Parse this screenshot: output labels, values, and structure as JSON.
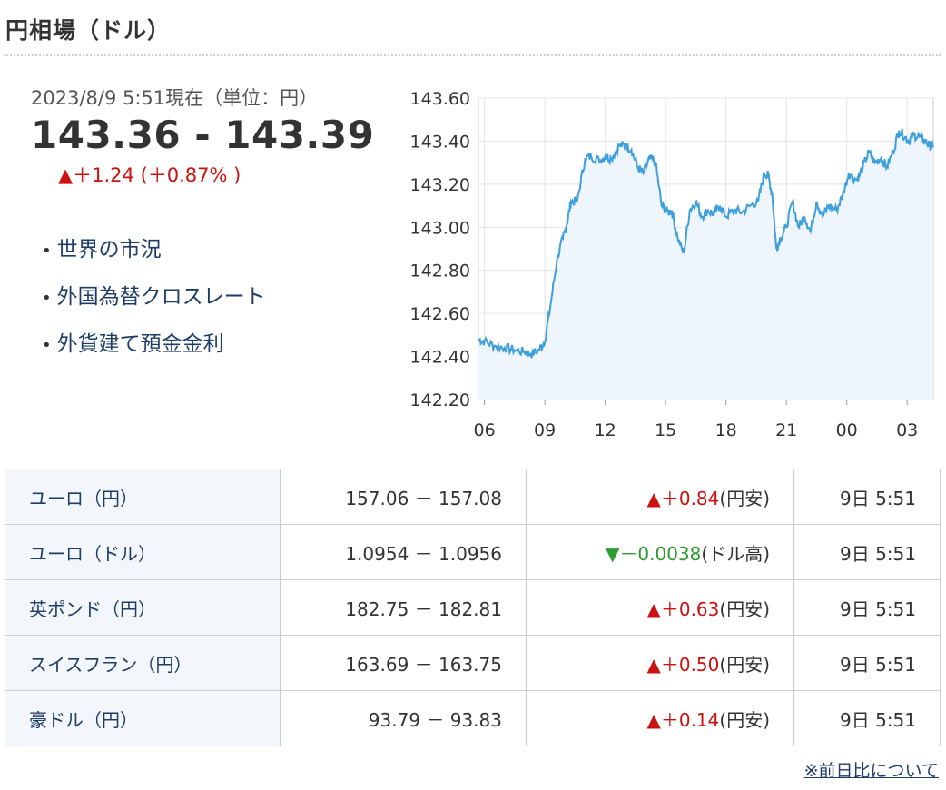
{
  "header": {
    "title": "円相場（ドル）"
  },
  "quote": {
    "as_of": "2023/8/9 5:51現在（単位：円）",
    "price": "143.36 - 143.39",
    "change": "▲＋1.24 (＋0.87% )"
  },
  "links": [
    {
      "label": "世界の市況"
    },
    {
      "label": "外国為替クロスレート"
    },
    {
      "label": "外貨建て預金金利"
    }
  ],
  "chart_data": {
    "type": "line",
    "title": "",
    "xlabel": "",
    "ylabel": "",
    "x_ticks": [
      "06",
      "09",
      "12",
      "15",
      "18",
      "21",
      "00",
      "03"
    ],
    "y_ticks": [
      "143.60",
      "143.40",
      "143.20",
      "143.00",
      "142.80",
      "142.60",
      "142.40",
      "142.20"
    ],
    "ylim": [
      142.2,
      143.6
    ],
    "xlim": [
      5.7,
      28.3
    ],
    "grid": true,
    "series": [
      {
        "color": "#3d9fdc",
        "fill": "#eef5fc",
        "x": [
          5.7,
          6.0,
          6.5,
          7.0,
          7.5,
          8.0,
          8.3,
          8.7,
          9.0,
          9.3,
          9.6,
          9.9,
          10.1,
          10.3,
          10.6,
          11.0,
          11.3,
          11.7,
          12.0,
          12.3,
          12.7,
          13.0,
          13.3,
          13.6,
          13.9,
          14.2,
          14.5,
          14.8,
          15.1,
          15.3,
          15.6,
          15.9,
          16.2,
          16.5,
          16.8,
          17.1,
          17.4,
          17.7,
          18.0,
          18.4,
          18.8,
          19.2,
          19.6,
          19.9,
          20.1,
          20.3,
          20.5,
          20.7,
          21.0,
          21.3,
          21.6,
          21.9,
          22.2,
          22.5,
          22.8,
          23.1,
          23.5,
          23.8,
          24.1,
          24.5,
          24.8,
          25.1,
          25.4,
          25.7,
          26.0,
          26.3,
          26.6,
          26.9,
          27.1,
          27.3,
          27.6,
          27.9,
          28.1,
          28.3
        ],
        "values": [
          142.48,
          142.47,
          142.45,
          142.44,
          142.43,
          142.42,
          142.41,
          142.43,
          142.47,
          142.65,
          142.85,
          142.95,
          143.02,
          143.12,
          143.12,
          143.32,
          143.33,
          143.31,
          143.33,
          143.32,
          143.38,
          143.38,
          143.36,
          143.28,
          143.25,
          143.32,
          143.3,
          143.1,
          143.07,
          143.08,
          142.95,
          142.88,
          143.08,
          143.12,
          143.05,
          143.08,
          143.06,
          143.1,
          143.05,
          143.08,
          143.07,
          143.1,
          143.12,
          143.25,
          143.24,
          143.15,
          142.9,
          142.95,
          143.0,
          143.12,
          143.0,
          143.05,
          142.98,
          143.12,
          143.05,
          143.1,
          143.08,
          143.15,
          143.25,
          143.22,
          143.28,
          143.35,
          143.3,
          143.32,
          143.28,
          143.35,
          143.45,
          143.42,
          143.4,
          143.43,
          143.42,
          143.4,
          143.38,
          143.37
        ]
      }
    ]
  },
  "table": {
    "rows": [
      {
        "name": "ユーロ（円）",
        "rate": "157.06 － 157.08",
        "dir": "up",
        "change": "▲＋0.84",
        "suffix": "(円安)",
        "time": "9日 5:51"
      },
      {
        "name": "ユーロ（ドル）",
        "rate": "1.0954 － 1.0956",
        "dir": "down",
        "change": "▼－0.0038",
        "suffix": "(ドル高)",
        "time": "9日 5:51"
      },
      {
        "name": "英ポンド（円）",
        "rate": "182.75 － 182.81",
        "dir": "up",
        "change": "▲＋0.63",
        "suffix": "(円安)",
        "time": "9日 5:51"
      },
      {
        "name": "スイスフラン（円）",
        "rate": "163.69 － 163.75",
        "dir": "up",
        "change": "▲＋0.50",
        "suffix": "(円安)",
        "time": "9日 5:51"
      },
      {
        "name": "豪ドル（円）",
        "rate": "93.79 － 93.83",
        "dir": "up",
        "change": "▲＋0.14",
        "suffix": "(円安)",
        "time": "9日 5:51"
      }
    ]
  },
  "footer": {
    "note": "※前日比について"
  }
}
